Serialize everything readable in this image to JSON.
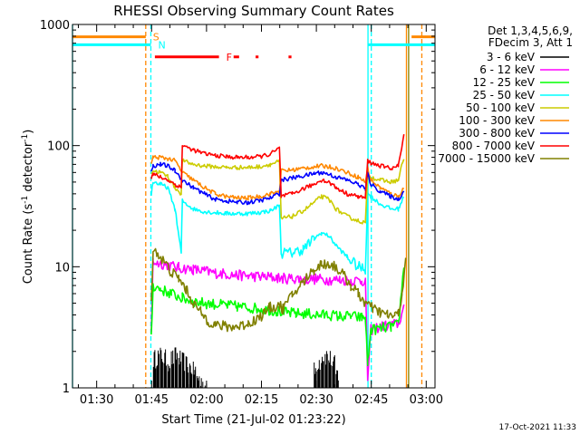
{
  "chart_data": {
    "type": "line",
    "title": "RHESSI Observing Summary Count Rates",
    "xlabel": "Start Time (21-Jul-02 01:23:22)",
    "ylabel_main": "Count Rate (s",
    "ylabel_sup1": "-1",
    "ylabel_mid": " detector",
    "ylabel_sup2": "-1",
    "ylabel_end": ")",
    "timestamp": "17-Oct-2021 11:33",
    "x_unit": "minutes after 01:23:22",
    "xlim": [
      0,
      99
    ],
    "ylim": [
      1,
      1000
    ],
    "yscale": "log",
    "x_ticks": [
      {
        "label": "01:30",
        "value": 6.6
      },
      {
        "label": "01:45",
        "value": 21.6
      },
      {
        "label": "02:00",
        "value": 36.6
      },
      {
        "label": "02:15",
        "value": 51.6
      },
      {
        "label": "02:30",
        "value": 66.6
      },
      {
        "label": "02:45",
        "value": 81.6
      },
      {
        "label": "03:00",
        "value": 96.6
      }
    ],
    "y_ticks": [
      {
        "label": "1",
        "value": 1
      },
      {
        "label": "10",
        "value": 10
      },
      {
        "label": "100",
        "value": 100
      },
      {
        "label": "1000",
        "value": 1000
      }
    ],
    "legend": {
      "header_line1": "Det 1,3,4,5,6,9,",
      "header_line2": "FDecim 3, Att 1",
      "placement": "right"
    },
    "series": [
      {
        "name": "3 - 6 keV",
        "color": "#000000",
        "kind": "spiky",
        "x": [
          22.1,
          23,
          24,
          25,
          26,
          27,
          28,
          29,
          30,
          31,
          32,
          33,
          34,
          35,
          36,
          66,
          67,
          68,
          69,
          70,
          71,
          72
        ],
        "values": [
          1.9,
          2.0,
          2.0,
          1.9,
          1.8,
          1.9,
          2.0,
          1.9,
          1.8,
          1.7,
          1.6,
          1.5,
          1.3,
          1.2,
          1.1,
          1.5,
          1.8,
          2.0,
          2.0,
          1.9,
          1.7,
          1.4
        ]
      },
      {
        "name": "6 - 12 keV",
        "color": "#ff00ff",
        "x": [
          21.5,
          22,
          25,
          29,
          33,
          36,
          39,
          42,
          45,
          48,
          51,
          54,
          56,
          58,
          61,
          64,
          67,
          70,
          73,
          76,
          79,
          80,
          80.6,
          81.5,
          84,
          87,
          89,
          90.5
        ],
        "values": [
          3,
          11,
          10.5,
          9.8,
          9.5,
          9.2,
          8.9,
          8.7,
          8.5,
          8.4,
          8.3,
          8.2,
          8.1,
          8.0,
          8.0,
          7.9,
          7.9,
          7.8,
          7.8,
          7.7,
          7.7,
          7.6,
          1.2,
          3,
          3.2,
          3.3,
          3.4,
          4.5
        ]
      },
      {
        "name": "12 - 25 keV",
        "color": "#00ff00",
        "x": [
          21.5,
          22,
          24,
          27,
          30,
          33,
          36,
          39,
          42,
          45,
          48,
          51,
          54,
          56,
          58,
          61,
          64,
          67,
          70,
          73,
          76,
          79,
          80,
          80.6,
          81.5,
          84,
          87,
          89,
          90.5
        ],
        "values": [
          2.5,
          7,
          6.5,
          6,
          5.5,
          5.2,
          5,
          4.9,
          4.8,
          4.7,
          4.6,
          4.5,
          4.4,
          4.3,
          4.2,
          4.1,
          4.1,
          4.0,
          4.0,
          3.9,
          3.9,
          3.8,
          3.8,
          1.6,
          3,
          3.1,
          3.2,
          3.3,
          10
        ]
      },
      {
        "name": "25 - 50 keV",
        "color": "#00ffff",
        "x": [
          21.5,
          22,
          24,
          26,
          28,
          29.7,
          30,
          33,
          36,
          39,
          42,
          45,
          48,
          51,
          54,
          56.5,
          57,
          60,
          63,
          66,
          68,
          70,
          72,
          75,
          78,
          80,
          80.6,
          81.5,
          84,
          87,
          89,
          90.5
        ],
        "values": [
          40,
          50,
          48,
          45,
          30,
          13,
          35,
          30,
          28.5,
          28,
          27.5,
          27.5,
          27.5,
          28,
          29,
          32,
          13,
          13,
          14,
          17,
          19,
          18,
          15,
          12,
          10,
          9.5,
          40,
          38,
          33,
          30,
          30,
          38
        ]
      },
      {
        "name": "50 - 100 keV",
        "color": "#cccc00",
        "x": [
          21.5,
          22,
          24,
          26,
          28,
          29.7,
          30,
          33,
          36,
          39,
          42,
          45,
          48,
          51,
          54,
          56.5,
          57,
          60,
          63,
          66,
          68,
          70,
          72,
          75,
          78,
          80,
          80.6,
          81.5,
          84,
          87,
          89,
          90.5
        ],
        "values": [
          60,
          62,
          60,
          56,
          45,
          40,
          75,
          70,
          68,
          67,
          66,
          66,
          66,
          67,
          70,
          74,
          25,
          26,
          29,
          34,
          38,
          36,
          30,
          26,
          24,
          23,
          55,
          55,
          52,
          50,
          52,
          80
        ]
      },
      {
        "name": "100 - 300 keV",
        "color": "#ff8800",
        "x": [
          21.5,
          22,
          24,
          26,
          28,
          30,
          33,
          36,
          39,
          42,
          45,
          48,
          51,
          54,
          56.5,
          57,
          60,
          63,
          66,
          68,
          70,
          72,
          75,
          78,
          80,
          80.6,
          81.5,
          84,
          87,
          89,
          90.5
        ],
        "values": [
          70,
          80,
          80,
          78,
          75,
          60,
          52,
          45,
          40,
          38,
          37,
          37,
          38,
          40,
          42,
          62,
          63,
          65,
          67,
          68,
          67,
          65,
          60,
          55,
          50,
          65,
          52,
          45,
          40,
          38,
          45
        ]
      },
      {
        "name": "300 - 800 keV",
        "color": "#0000ff",
        "x": [
          21.5,
          22,
          24,
          26,
          28,
          30,
          33,
          36,
          39,
          42,
          45,
          48,
          51,
          54,
          56.5,
          57,
          60,
          63,
          66,
          68,
          70,
          72,
          75,
          78,
          80,
          80.6,
          81.5,
          84,
          87,
          89,
          90.5
        ],
        "values": [
          60,
          68,
          70,
          68,
          62,
          52,
          45,
          40,
          36,
          35,
          34,
          34,
          35,
          37,
          40,
          52,
          54,
          56,
          59,
          60,
          58,
          55,
          52,
          48,
          44,
          58,
          48,
          42,
          38,
          36,
          42
        ]
      },
      {
        "name": "800 - 7000 keV",
        "color": "#ff0000",
        "x": [
          21.5,
          22,
          24,
          26,
          28,
          29.7,
          30,
          33,
          36,
          39,
          42,
          45,
          48,
          51,
          54,
          56.5,
          57,
          60,
          63,
          66,
          68,
          70,
          72,
          75,
          78,
          80,
          80.6,
          81.5,
          84,
          87,
          89,
          90.5
        ],
        "values": [
          55,
          58,
          55,
          52,
          48,
          45,
          100,
          92,
          86,
          83,
          81,
          80,
          80,
          81,
          85,
          95,
          38,
          40,
          44,
          48,
          52,
          50,
          45,
          40,
          38,
          37,
          75,
          72,
          68,
          65,
          68,
          120
        ]
      },
      {
        "name": "7000 - 15000 keV",
        "color": "#808000",
        "x": [
          21.5,
          22,
          23,
          25,
          27,
          29,
          31,
          33,
          35,
          37,
          39,
          42,
          45,
          48,
          51,
          54,
          56.5,
          57.5,
          60,
          63,
          66,
          68,
          70,
          72,
          74,
          76,
          78,
          80,
          82,
          84,
          86,
          88,
          89,
          90,
          91
        ],
        "values": [
          5,
          14,
          13,
          11,
          9,
          8,
          6.5,
          5,
          4.2,
          3.6,
          3.3,
          3.2,
          3.2,
          3.4,
          3.8,
          4.6,
          4.8,
          4.5,
          5.8,
          7.5,
          9.5,
          10.5,
          10.5,
          10,
          8.5,
          7,
          6,
          5,
          4.5,
          4.2,
          4,
          3.9,
          4.1,
          6,
          12
        ]
      }
    ],
    "vertical_markers": [
      {
        "x": 20.0,
        "color": "#ff8800",
        "style": "dashed"
      },
      {
        "x": 21.4,
        "color": "#00ffff",
        "style": "dashed"
      },
      {
        "x": 95.4,
        "color": "#ff8800",
        "style": "dashed"
      },
      {
        "x": 0.0,
        "color": "#00ffff",
        "style": "solid"
      },
      {
        "x": 80.7,
        "color": "#00ffff",
        "style": "solid"
      },
      {
        "x": 81.6,
        "color": "#00ffff",
        "style": "dashed"
      },
      {
        "x": 91.2,
        "color": "#ff8800",
        "style": "solid"
      },
      {
        "x": 91.8,
        "color": "#808000",
        "style": "solid"
      }
    ],
    "flag_bars": [
      {
        "label": "S",
        "color": "#ff8800",
        "level": 790,
        "segments": [
          [
            0,
            20
          ],
          [
            92.6,
            99
          ]
        ]
      },
      {
        "label": "N",
        "color": "#00ffff",
        "level": 680,
        "segments": [
          [
            0,
            21.4
          ],
          [
            80.7,
            99
          ]
        ]
      },
      {
        "label": "F",
        "color": "#ff0000",
        "level": 540,
        "segments": [
          [
            22.5,
            40
          ],
          [
            44,
            45.5
          ],
          [
            50,
            50.8
          ],
          [
            59,
            59.8
          ]
        ]
      }
    ]
  }
}
